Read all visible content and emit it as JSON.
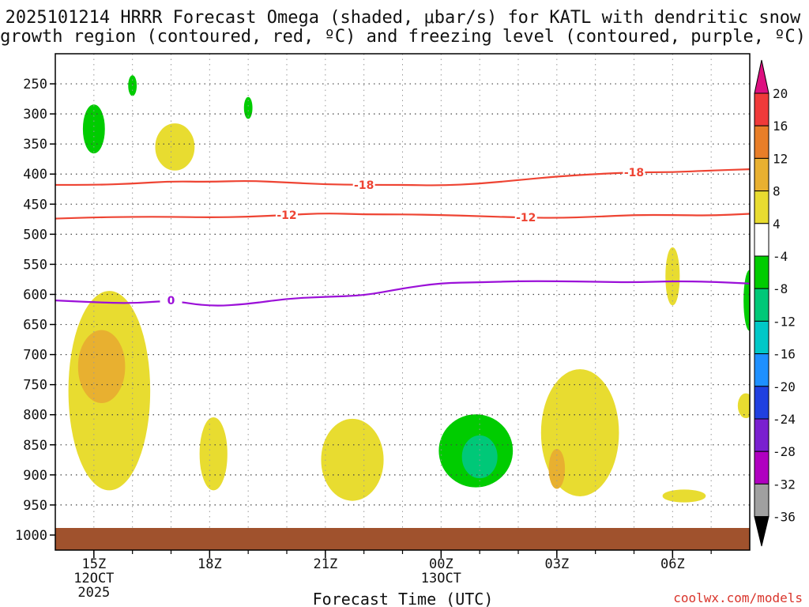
{
  "chart_data": {
    "type": "contour",
    "title_lines": [
      "2025101214 HRRR Forecast Omega (shaded, μbar/s) for KATL with dendritic snow",
      "growth region (contoured, red, ºC) and freezing level (contoured, purple, ºC)"
    ],
    "xlabel": "Forecast Time (UTC)",
    "credit": "coolwx.com/models",
    "x_ticks": [
      {
        "hour": 15,
        "label": "15Z",
        "sub": [
          "12OCT",
          "2025"
        ]
      },
      {
        "hour": 18,
        "label": "18Z",
        "sub": []
      },
      {
        "hour": 21,
        "label": "21Z",
        "sub": []
      },
      {
        "hour": 24,
        "label": "00Z",
        "sub": [
          "13OCT"
        ]
      },
      {
        "hour": 27,
        "label": "03Z",
        "sub": []
      },
      {
        "hour": 30,
        "label": "06Z",
        "sub": []
      }
    ],
    "x_range_hours": [
      14,
      32
    ],
    "y_axis": {
      "units": "hPa",
      "ticks": [
        250,
        300,
        350,
        400,
        450,
        500,
        550,
        600,
        650,
        700,
        750,
        800,
        850,
        900,
        950,
        1000
      ],
      "range": [
        200,
        1025
      ]
    },
    "ground": {
      "from_hpa": 975,
      "color": "#a0522d"
    },
    "colorbar": {
      "labels": [
        "20",
        "16",
        "12",
        "8",
        "4",
        "-4",
        "-8",
        "-12",
        "-16",
        "-20",
        "-24",
        "-28",
        "-32",
        "-36"
      ],
      "colors": [
        "#f03a3a",
        "#e87e28",
        "#e8b030",
        "#e8dc30",
        "#ffffff",
        "#00cc00",
        "#00c878",
        "#00c8c8",
        "#1e90ff",
        "#2040e0",
        "#7a20d0",
        "#b000c0",
        "#a0a0a0"
      ],
      "top_arrow": "#dd1080",
      "bottom_arrow": "#000000"
    },
    "contours": [
      {
        "name": "-18",
        "color": "#ee4433",
        "points": [
          [
            14,
            418
          ],
          [
            15,
            418
          ],
          [
            16,
            416
          ],
          [
            17,
            412
          ],
          [
            18,
            413
          ],
          [
            19,
            411
          ],
          [
            20,
            414
          ],
          [
            21,
            417
          ],
          [
            22,
            418
          ],
          [
            23,
            418
          ],
          [
            24,
            419
          ],
          [
            25,
            416
          ],
          [
            26,
            410
          ],
          [
            27,
            404
          ],
          [
            28,
            400
          ],
          [
            29,
            397
          ],
          [
            30,
            397
          ],
          [
            31,
            394
          ],
          [
            32,
            392
          ]
        ],
        "labels": [
          [
            22.0,
            418
          ],
          [
            29.0,
            397
          ]
        ]
      },
      {
        "name": "-12",
        "color": "#ee4433",
        "points": [
          [
            14,
            474
          ],
          [
            15,
            472
          ],
          [
            16,
            471
          ],
          [
            17,
            471
          ],
          [
            18,
            472
          ],
          [
            19,
            471
          ],
          [
            20,
            468
          ],
          [
            21,
            465
          ],
          [
            22,
            467
          ],
          [
            23,
            467
          ],
          [
            24,
            468
          ],
          [
            25,
            470
          ],
          [
            26,
            472
          ],
          [
            27,
            473
          ],
          [
            28,
            471
          ],
          [
            29,
            468
          ],
          [
            30,
            468
          ],
          [
            31,
            469
          ],
          [
            32,
            466
          ]
        ],
        "labels": [
          [
            20.0,
            468
          ],
          [
            26.2,
            472
          ]
        ]
      },
      {
        "name": "0",
        "color": "#9b10d8",
        "points": [
          [
            14,
            610
          ],
          [
            15,
            613
          ],
          [
            16,
            615
          ],
          [
            17,
            610
          ],
          [
            18,
            620
          ],
          [
            19,
            616
          ],
          [
            20,
            607
          ],
          [
            21,
            604
          ],
          [
            22,
            602
          ],
          [
            23,
            590
          ],
          [
            24,
            581
          ],
          [
            25,
            580
          ],
          [
            26,
            578
          ],
          [
            27,
            578
          ],
          [
            28,
            579
          ],
          [
            29,
            580
          ],
          [
            30,
            578
          ],
          [
            31,
            579
          ],
          [
            32,
            582
          ]
        ],
        "labels": [
          [
            17.0,
            610
          ]
        ]
      }
    ],
    "omega_shaded": [
      {
        "level": "-4",
        "color": "#00cc00",
        "center": [
          15.0,
          325
        ],
        "spans": [
          [
            14.75,
            15.3
          ],
          [
            285,
            365
          ]
        ]
      },
      {
        "level": "-4",
        "color": "#00cc00",
        "center": [
          16.0,
          253
        ],
        "spans": [
          [
            15.9,
            16.1
          ],
          [
            235,
            268
          ]
        ]
      },
      {
        "level": "-4",
        "color": "#00cc00",
        "center": [
          19.0,
          290
        ],
        "spans": [
          [
            18.9,
            19.1
          ],
          [
            270,
            305
          ]
        ]
      },
      {
        "level": "4",
        "color": "#e8dc30",
        "center": [
          17.1,
          355
        ],
        "spans": [
          [
            16.6,
            17.6
          ],
          [
            315,
            392
          ]
        ]
      },
      {
        "level": "4",
        "color": "#e8dc30",
        "center": [
          15.4,
          760
        ],
        "spans": [
          [
            14.4,
            16.5
          ],
          [
            620,
            950
          ]
        ]
      },
      {
        "level": "8",
        "color": "#e8b030",
        "center": [
          15.2,
          720
        ],
        "spans": [
          [
            14.7,
            15.9
          ],
          [
            660,
            780
          ]
        ]
      },
      {
        "level": "4",
        "color": "#e8dc30",
        "center": [
          18.1,
          865
        ],
        "spans": [
          [
            17.8,
            18.5
          ],
          [
            805,
            925
          ]
        ]
      },
      {
        "level": "4",
        "color": "#e8dc30",
        "center": [
          21.7,
          875
        ],
        "spans": [
          [
            21.0,
            22.6
          ],
          [
            820,
            955
          ]
        ]
      },
      {
        "level": "-4",
        "color": "#00cc00",
        "center": [
          24.9,
          860
        ],
        "spans": [
          [
            23.7,
            25.6
          ],
          [
            800,
            920
          ]
        ]
      },
      {
        "level": "-8",
        "color": "#00c878",
        "center": [
          25.0,
          870
        ],
        "spans": [
          [
            24.6,
            25.5
          ],
          [
            835,
            905
          ]
        ]
      },
      {
        "level": "4",
        "color": "#e8dc30",
        "center": [
          27.6,
          830
        ],
        "spans": [
          [
            26.6,
            28.6
          ],
          [
            750,
            960
          ]
        ]
      },
      {
        "level": "8",
        "color": "#e8b030",
        "center": [
          27.0,
          890
        ],
        "spans": [
          [
            26.8,
            27.2
          ],
          [
            870,
            935
          ]
        ]
      },
      {
        "level": "4",
        "color": "#e8dc30",
        "center": [
          30.0,
          570
        ],
        "spans": [
          [
            29.85,
            30.2
          ],
          [
            520,
            615
          ]
        ]
      },
      {
        "level": "4",
        "color": "#e8dc30",
        "center": [
          30.3,
          935
        ],
        "spans": [
          [
            29.8,
            30.9
          ],
          [
            925,
            945
          ]
        ]
      },
      {
        "level": "-4",
        "color": "#00cc00",
        "center": [
          32.0,
          610
        ],
        "spans": [
          [
            31.7,
            32.0
          ],
          [
            560,
            660
          ]
        ]
      },
      {
        "level": "4",
        "color": "#e8dc30",
        "center": [
          31.9,
          785
        ],
        "spans": [
          [
            31.6,
            32.0
          ],
          [
            770,
            810
          ]
        ]
      }
    ]
  }
}
